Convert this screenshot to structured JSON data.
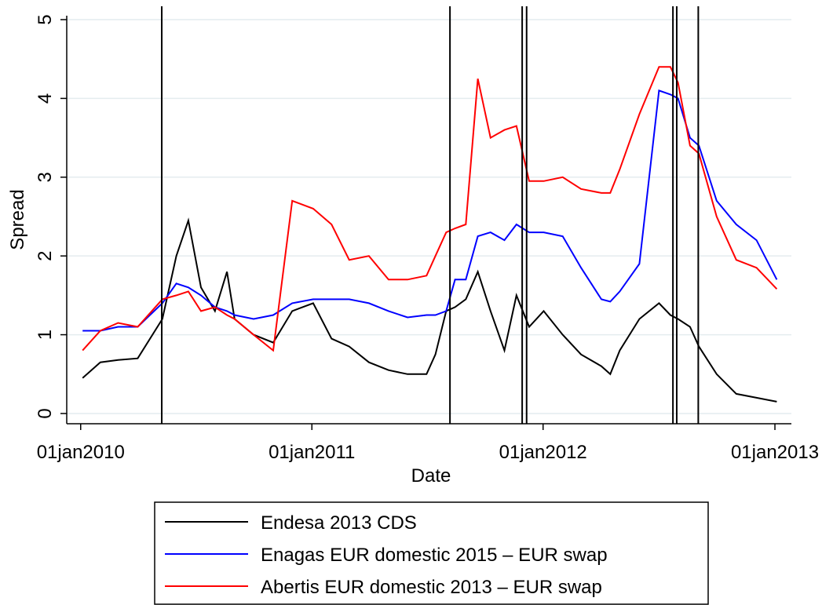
{
  "chart_data": {
    "type": "line",
    "x_label": "Date",
    "y_label": "Spread",
    "x": [
      "2010-01-04",
      "2010-02-01",
      "2010-03-01",
      "2010-04-01",
      "2010-05-10",
      "2010-06-01",
      "2010-06-20",
      "2010-07-10",
      "2010-08-01",
      "2010-08-20",
      "2010-09-01",
      "2010-10-01",
      "2010-11-01",
      "2010-12-01",
      "2011-01-03",
      "2011-02-01",
      "2011-03-01",
      "2011-04-01",
      "2011-05-02",
      "2011-06-01",
      "2011-07-01",
      "2011-07-15",
      "2011-08-01",
      "2011-08-15",
      "2011-09-01",
      "2011-09-20",
      "2011-10-10",
      "2011-11-01",
      "2011-11-20",
      "2011-12-10",
      "2012-01-02",
      "2012-02-01",
      "2012-03-01",
      "2012-04-02",
      "2012-04-16",
      "2012-05-01",
      "2012-06-01",
      "2012-07-02",
      "2012-07-20",
      "2012-08-01",
      "2012-08-20",
      "2012-09-03",
      "2012-10-01",
      "2012-11-01",
      "2012-12-03",
      "2013-01-04"
    ],
    "series": [
      {
        "name": "Endesa 2013 CDS",
        "color": "#000000",
        "values": [
          0.45,
          0.65,
          0.68,
          0.7,
          1.2,
          2.0,
          2.45,
          1.6,
          1.3,
          1.8,
          1.2,
          1.0,
          0.9,
          1.3,
          1.4,
          0.95,
          0.85,
          0.65,
          0.55,
          0.5,
          0.5,
          0.75,
          1.3,
          1.35,
          1.45,
          1.8,
          1.3,
          0.8,
          1.5,
          1.1,
          1.3,
          1.0,
          0.75,
          0.6,
          0.5,
          0.8,
          1.2,
          1.4,
          1.25,
          1.2,
          1.1,
          0.85,
          0.5,
          0.25,
          0.2,
          0.15
        ]
      },
      {
        "name": "Enagas EUR domestic 2015 – EUR swap",
        "color": "#0000ff",
        "values": [
          1.05,
          1.05,
          1.1,
          1.1,
          1.4,
          1.65,
          1.6,
          1.5,
          1.35,
          1.3,
          1.25,
          1.2,
          1.25,
          1.4,
          1.45,
          1.45,
          1.45,
          1.4,
          1.3,
          1.22,
          1.25,
          1.25,
          1.3,
          1.7,
          1.7,
          2.25,
          2.3,
          2.2,
          2.4,
          2.3,
          2.3,
          2.25,
          1.85,
          1.45,
          1.42,
          1.55,
          1.9,
          4.1,
          4.05,
          4.0,
          3.5,
          3.4,
          2.7,
          2.4,
          2.2,
          1.7
        ]
      },
      {
        "name": "Abertis EUR domestic 2013 – EUR swap",
        "color": "#ff0000",
        "values": [
          0.8,
          1.05,
          1.15,
          1.1,
          1.45,
          1.5,
          1.55,
          1.3,
          1.35,
          1.25,
          1.2,
          1.0,
          0.8,
          2.7,
          2.6,
          2.4,
          1.95,
          2.0,
          1.7,
          1.7,
          1.75,
          2.0,
          2.3,
          2.35,
          2.4,
          4.25,
          3.5,
          3.6,
          3.65,
          2.95,
          2.95,
          3.0,
          2.85,
          2.8,
          2.8,
          3.1,
          3.8,
          4.4,
          4.4,
          4.2,
          3.4,
          3.3,
          2.5,
          1.95,
          1.85,
          1.58
        ]
      }
    ],
    "vlines": [
      "2010-05-09",
      "2011-08-07",
      "2011-11-29",
      "2011-12-06",
      "2012-07-24",
      "2012-07-30",
      "2012-09-02"
    ],
    "xlim": [
      "2009-12-10",
      "2013-01-27"
    ],
    "xticks": [
      {
        "value": "2010-01-01",
        "label": "01jan2010"
      },
      {
        "value": "2011-01-01",
        "label": "01jan2011"
      },
      {
        "value": "2012-01-01",
        "label": "01jan2012"
      },
      {
        "value": "2013-01-01",
        "label": "01jan2013"
      }
    ],
    "ylim": [
      -0.13,
      5.05
    ],
    "yticks": [
      0,
      1,
      2,
      3,
      4,
      5
    ],
    "grid": true
  }
}
